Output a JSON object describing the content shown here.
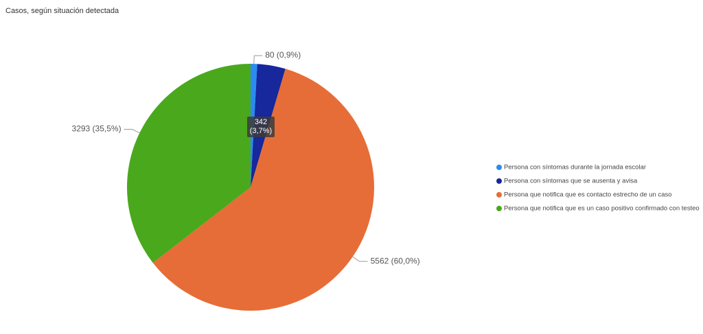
{
  "chart_data": {
    "type": "pie",
    "title": "Casos, según situación detectada",
    "categories": [
      "Persona con síntomas durante la jornada escolar",
      "Persona con síntomas que se ausenta y avisa",
      "Persona que notifica que es contacto estrecho de un caso",
      "Persona que notifica que es un caso positivo confirmado con testeo"
    ],
    "values": [
      80,
      342,
      5562,
      3293
    ],
    "value_labels": [
      "80 (0,9%)",
      "342 (3,7%)",
      "5562 (60,0%)",
      "3293 (35,5%)"
    ],
    "colors": [
      "#2a8cf0",
      "#17279c",
      "#e66d37",
      "#4aa81d"
    ],
    "legend": "right"
  }
}
